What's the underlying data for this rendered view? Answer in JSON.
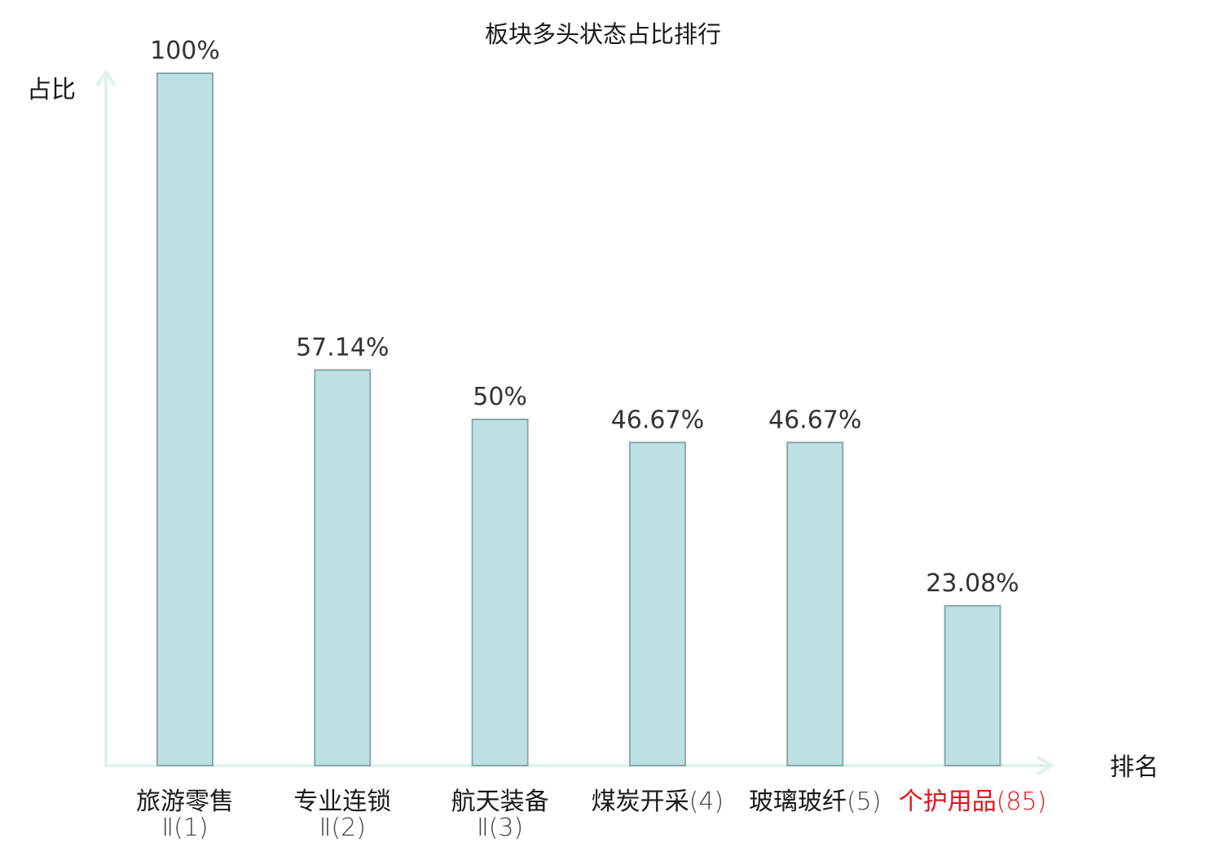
{
  "chart_data": {
    "type": "bar",
    "title": "板块多头状态占比排行",
    "ylabel": "占比",
    "xlabel": "排名",
    "ylim": [
      0,
      100
    ],
    "unit": "%",
    "categories": [
      {
        "name": "旅游零售",
        "rank": "Ⅱ(1)",
        "rank_inline": false,
        "highlight": false
      },
      {
        "name": "专业连锁",
        "rank": "Ⅱ(2)",
        "rank_inline": false,
        "highlight": false
      },
      {
        "name": "航天装备",
        "rank": "Ⅱ(3)",
        "rank_inline": false,
        "highlight": false
      },
      {
        "name": "煤炭开采",
        "rank": "(4)",
        "rank_inline": true,
        "highlight": false
      },
      {
        "name": "玻璃玻纤",
        "rank": "(5)",
        "rank_inline": true,
        "highlight": false
      },
      {
        "name": "个护用品",
        "rank": "(85)",
        "rank_inline": true,
        "highlight": true
      }
    ],
    "values": [
      100,
      57.14,
      50,
      46.67,
      46.67,
      23.08
    ],
    "value_labels": [
      "100%",
      "57.14%",
      "50%",
      "46.67%",
      "46.67%",
      "23.08%"
    ],
    "colors": {
      "bar_fill": "#bde0e3",
      "bar_stroke": "#8aa8ab",
      "axis": "#dff2ef",
      "text": "#1a1a1a",
      "rank_text": "#444444",
      "highlight": "#e8101a"
    },
    "grid": false,
    "legend": "none"
  }
}
